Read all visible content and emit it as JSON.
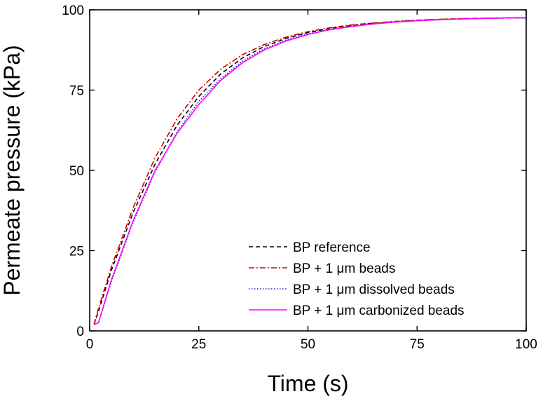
{
  "chart_data": {
    "type": "line",
    "title": "",
    "xlabel": "Time (s)",
    "ylabel": "Permeate pressure (kPa)",
    "xlim": [
      0,
      100
    ],
    "ylim": [
      0,
      100
    ],
    "xticks": [
      0,
      25,
      50,
      75,
      100
    ],
    "yticks": [
      0,
      25,
      50,
      75,
      100
    ],
    "xtick_labels": [
      "0",
      "25",
      "50",
      "75",
      "100"
    ],
    "ytick_labels": [
      "0",
      "25",
      "50",
      "75",
      "100"
    ],
    "grid": false,
    "legend_position": "lower-right",
    "series": [
      {
        "name": "BP reference",
        "color": "#000000",
        "style": "dashed",
        "x": [
          1,
          2,
          5,
          10,
          15,
          20,
          25,
          30,
          35,
          40,
          45,
          50,
          55,
          60,
          65,
          70,
          75,
          80,
          85,
          90,
          95,
          100
        ],
        "y": [
          2,
          6,
          19,
          37,
          52,
          64,
          73,
          80,
          85,
          88.6,
          91.1,
          92.9,
          94.2,
          95.1,
          95.8,
          96.3,
          96.7,
          97.0,
          97.2,
          97.35,
          97.45,
          97.5
        ]
      },
      {
        "name": "BP + 1 μm beads",
        "color": "#cc0000",
        "style": "dashdot",
        "x": [
          1,
          2,
          5,
          10,
          15,
          20,
          25,
          30,
          35,
          40,
          45,
          50,
          55,
          60,
          65,
          70,
          75,
          80,
          85,
          90,
          95,
          100
        ],
        "y": [
          2,
          7,
          20,
          38.5,
          54,
          66,
          75,
          81.5,
          86,
          89.2,
          91.5,
          93.2,
          94.4,
          95.3,
          95.9,
          96.4,
          96.8,
          97.05,
          97.25,
          97.4,
          97.5,
          97.5
        ]
      },
      {
        "name": "BP + 1 μm dissolved beads",
        "color": "#1f1fcc",
        "style": "dotted",
        "x": [
          1,
          2,
          5,
          10,
          15,
          20,
          25,
          30,
          35,
          40,
          45,
          50,
          55,
          60,
          65,
          70,
          75,
          80,
          85,
          90,
          95,
          100
        ],
        "y": [
          2,
          2.5,
          15.5,
          34,
          49.5,
          62,
          71.5,
          78.5,
          84,
          87.9,
          90.6,
          92.5,
          93.9,
          94.9,
          95.6,
          96.2,
          96.6,
          96.9,
          97.15,
          97.3,
          97.45,
          97.5
        ]
      },
      {
        "name": "BP + 1 μm carbonized beads",
        "color": "#ff00ff",
        "style": "solid",
        "x": [
          1,
          2,
          5,
          10,
          15,
          20,
          25,
          30,
          35,
          40,
          45,
          50,
          55,
          60,
          65,
          70,
          75,
          80,
          85,
          90,
          95,
          100
        ],
        "y": [
          2,
          2.5,
          16,
          34.5,
          50,
          61.5,
          70.5,
          78,
          83.5,
          87.5,
          90.3,
          92.3,
          93.8,
          94.8,
          95.6,
          96.2,
          96.6,
          96.9,
          97.15,
          97.3,
          97.45,
          97.5
        ]
      }
    ]
  }
}
